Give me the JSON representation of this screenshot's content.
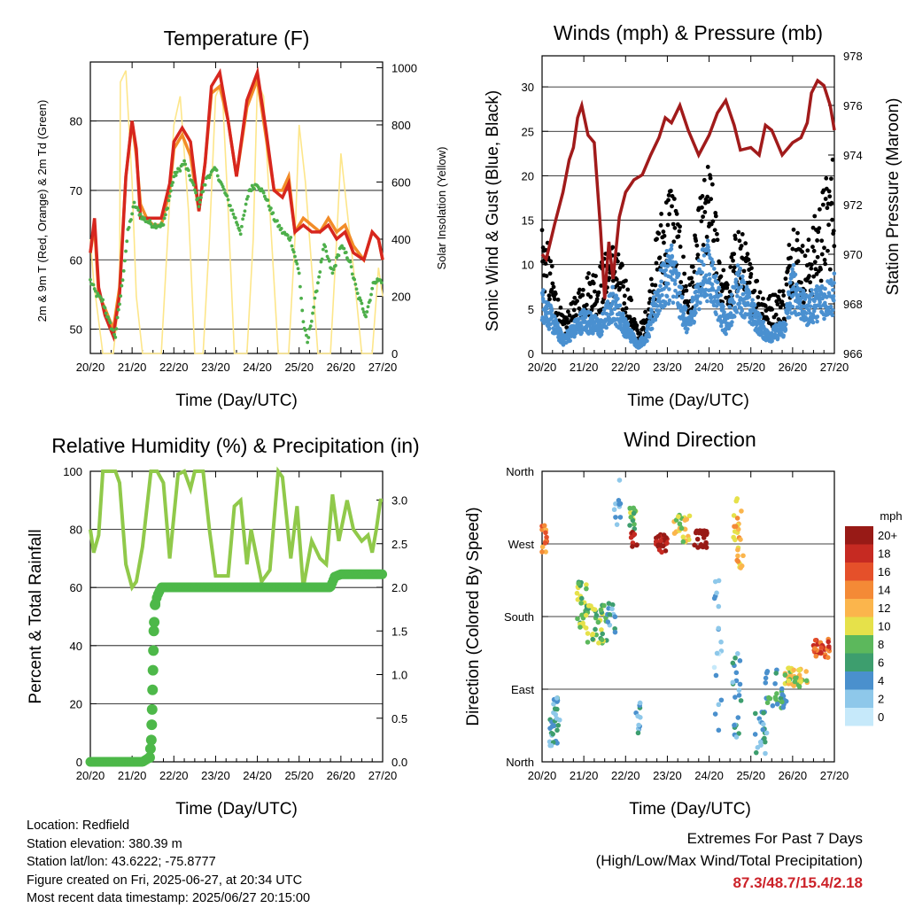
{
  "chart_data": [
    {
      "type": "line",
      "title": "Temperature (F)",
      "xlabel": "Time (Day/UTC)",
      "ylabel": "2m & 9m T (Red, Orange) & 2m Td (Green)",
      "y2label": "Solar Insolation (Yellow)",
      "xticks": [
        "20/20",
        "21/20",
        "22/20",
        "23/20",
        "24/20",
        "25/20",
        "26/20",
        "27/20"
      ],
      "yticks": [
        50,
        60,
        70,
        80
      ],
      "y2ticks": [
        0,
        200,
        400,
        600,
        800,
        1000
      ],
      "xlim": [
        0,
        7
      ],
      "ylim": [
        46.5,
        88.5
      ],
      "y2lim": [
        0,
        1020
      ],
      "grid": true,
      "colors": {
        "t2m": "#d7261e",
        "t9m": "#f28c28",
        "td": "#4daf4a",
        "solar": "#fde68a"
      },
      "series": [
        {
          "key": "t9m",
          "x": [
            0,
            0.1,
            0.2,
            0.35,
            0.55,
            0.7,
            0.85,
            1.0,
            1.1,
            1.2,
            1.35,
            1.5,
            1.7,
            1.9,
            2.0,
            2.2,
            2.4,
            2.6,
            2.75,
            2.9,
            3.1,
            3.3,
            3.5,
            3.75,
            4.0,
            4.2,
            4.4,
            4.6,
            4.75,
            4.9,
            5.1,
            5.3,
            5.5,
            5.7,
            5.9,
            6.1,
            6.3,
            6.55,
            6.75,
            6.9,
            7.0
          ],
          "values": [
            61,
            65,
            55,
            53,
            50,
            56,
            72,
            80,
            75,
            68,
            66,
            65,
            65,
            70,
            76,
            78,
            75,
            67,
            74,
            84,
            85,
            80,
            72,
            82,
            86,
            78,
            70,
            70,
            72,
            64,
            66,
            65,
            64,
            66,
            64,
            65,
            62,
            60,
            64,
            63,
            60
          ]
        },
        {
          "key": "t2m",
          "x": [
            0,
            0.1,
            0.2,
            0.35,
            0.55,
            0.7,
            0.85,
            1.0,
            1.1,
            1.2,
            1.35,
            1.5,
            1.7,
            1.9,
            2.0,
            2.2,
            2.4,
            2.6,
            2.75,
            2.9,
            3.1,
            3.3,
            3.5,
            3.75,
            4.0,
            4.2,
            4.4,
            4.6,
            4.75,
            4.9,
            5.1,
            5.3,
            5.5,
            5.7,
            5.9,
            6.1,
            6.3,
            6.55,
            6.75,
            6.9,
            7.0
          ],
          "values": [
            61,
            66,
            56,
            52,
            49,
            55,
            72,
            80,
            76,
            66,
            66,
            66,
            66,
            71,
            77,
            79,
            77,
            67,
            74,
            85,
            87,
            80,
            72,
            83,
            87,
            79,
            70,
            69,
            71,
            64,
            65,
            64,
            64,
            65,
            63,
            64,
            61,
            60,
            64,
            63,
            60
          ]
        },
        {
          "key": "td",
          "x": [
            0,
            0.15,
            0.3,
            0.45,
            0.6,
            0.75,
            0.9,
            1.05,
            1.25,
            1.5,
            1.75,
            2.0,
            2.25,
            2.45,
            2.6,
            2.8,
            3.0,
            3.2,
            3.4,
            3.6,
            3.8,
            4.0,
            4.2,
            4.4,
            4.6,
            4.8,
            5.0,
            5.1,
            5.2,
            5.4,
            5.6,
            5.8,
            6.0,
            6.2,
            6.4,
            6.6,
            6.8,
            7.0
          ],
          "values": [
            57,
            55,
            54,
            51,
            49,
            56,
            64,
            68,
            66,
            65,
            65,
            72,
            74,
            71,
            68,
            72,
            73,
            70,
            67,
            64,
            70,
            71,
            69,
            66,
            64,
            63,
            58,
            51,
            48,
            55,
            62,
            58,
            62,
            60,
            55,
            52,
            57,
            57
          ]
        },
        {
          "key": "solar",
          "x": [
            0,
            0.08,
            0.3,
            0.42,
            0.55,
            0.7,
            0.72,
            0.85,
            1.0,
            1.1,
            1.25,
            1.4,
            1.7,
            1.85,
            2.0,
            2.15,
            2.35,
            2.5,
            2.7,
            2.85,
            3.0,
            3.15,
            3.3,
            3.45,
            3.75,
            3.9,
            4.0,
            4.15,
            4.3,
            4.5,
            4.75,
            4.9,
            5.0,
            5.15,
            5.3,
            5.45,
            5.75,
            5.9,
            6.0,
            6.15,
            6.3,
            6.5,
            6.75,
            6.9,
            7.0
          ],
          "values": [
            400,
            250,
            0,
            0,
            0,
            200,
            950,
            990,
            600,
            200,
            0,
            0,
            0,
            400,
            800,
            900,
            500,
            0,
            0,
            400,
            900,
            950,
            500,
            0,
            0,
            400,
            950,
            900,
            500,
            0,
            0,
            400,
            800,
            600,
            300,
            0,
            0,
            400,
            700,
            500,
            300,
            0,
            0,
            300,
            200
          ]
        }
      ]
    },
    {
      "type": "scatter",
      "title": "Winds (mph) & Pressure (mb)",
      "xlabel": "Time (Day/UTC)",
      "ylabel": "Sonic Wind & Gust (Blue, Black)",
      "y2label": "Station Pressure (Maroon)",
      "xticks": [
        "20/20",
        "21/20",
        "22/20",
        "23/20",
        "24/20",
        "25/20",
        "26/20",
        "27/20"
      ],
      "yticks": [
        0,
        5,
        10,
        15,
        20,
        25,
        30
      ],
      "y2ticks": [
        966,
        968,
        970,
        972,
        974,
        976,
        978
      ],
      "xlim": [
        0,
        7
      ],
      "ylim": [
        0,
        33.5
      ],
      "y2lim": [
        966,
        978
      ],
      "grid": true,
      "colors": {
        "wind": "#4a90d0",
        "gust": "#000000",
        "pressure": "#a11b1b"
      },
      "pressure": {
        "x": [
          0,
          0.1,
          0.3,
          0.5,
          0.65,
          0.75,
          0.85,
          0.95,
          1.1,
          1.25,
          1.4,
          1.5,
          1.6,
          1.7,
          1.85,
          2.0,
          2.2,
          2.4,
          2.6,
          2.8,
          2.95,
          3.1,
          3.3,
          3.5,
          3.75,
          4.0,
          4.2,
          4.4,
          4.6,
          4.75,
          5.0,
          5.2,
          5.35,
          5.5,
          5.75,
          6.0,
          6.2,
          6.35,
          6.45,
          6.6,
          6.75,
          6.9,
          7.0
        ],
        "values": [
          970,
          969.8,
          971.2,
          972.5,
          973.8,
          974.3,
          975.5,
          976,
          974.8,
          974.5,
          971,
          968.2,
          970.5,
          969,
          971.5,
          972.5,
          973,
          973.2,
          974,
          974.7,
          975.5,
          975.3,
          976,
          975,
          974,
          974.8,
          975.7,
          976.2,
          975.2,
          974.2,
          974.3,
          974,
          975.2,
          975,
          974,
          974.5,
          974.7,
          975.3,
          976.5,
          977,
          976.8,
          976,
          975
        ]
      },
      "wind_profile": {
        "x": [
          0,
          0.5,
          0.8,
          1.0,
          1.4,
          1.7,
          2.0,
          2.3,
          2.5,
          2.8,
          3.1,
          3.5,
          3.8,
          4.0,
          4.4,
          4.7,
          5.0,
          5.4,
          5.8,
          6.0,
          6.3,
          6.6,
          7.0
        ],
        "values": [
          6,
          1.5,
          3,
          4,
          3,
          6,
          3,
          1,
          2,
          7,
          10,
          3,
          9,
          10,
          3,
          8,
          5,
          2,
          3,
          8,
          5,
          6,
          7
        ]
      },
      "gust_profile": {
        "x": [
          0,
          0.5,
          0.8,
          1.0,
          1.4,
          1.7,
          2.0,
          2.3,
          2.5,
          2.8,
          3.1,
          3.5,
          3.8,
          4.0,
          4.4,
          4.7,
          5.0,
          5.4,
          5.8,
          6.0,
          6.3,
          6.6,
          7.0
        ],
        "values": [
          12,
          3,
          5,
          7,
          8,
          10,
          7,
          2,
          4,
          12,
          16,
          6,
          14,
          17,
          6,
          12,
          8,
          5,
          6,
          13,
          9,
          13,
          18
        ]
      }
    },
    {
      "type": "line",
      "title": "Relative Humidity (%) & Precipitation (in)",
      "xlabel": "Time (Day/UTC)",
      "ylabel": "Percent & Total Rainfall",
      "xticks": [
        "20/20",
        "21/20",
        "22/20",
        "23/20",
        "24/20",
        "25/20",
        "26/20",
        "27/20"
      ],
      "yticks": [
        0,
        20,
        40,
        60,
        80,
        100
      ],
      "y2ticks": [
        "0.0",
        "0.5",
        "1.0",
        "1.5",
        "2.0",
        "2.5",
        "3.0"
      ],
      "xlim": [
        0,
        7
      ],
      "ylim": [
        0,
        100
      ],
      "y2lim": [
        0,
        3.33
      ],
      "grid": true,
      "colors": {
        "rh": "#90c94a",
        "precip": "#4db849"
      },
      "rh": {
        "x": [
          0,
          0.08,
          0.2,
          0.3,
          0.6,
          0.7,
          0.85,
          1.0,
          1.1,
          1.25,
          1.45,
          1.6,
          1.75,
          1.9,
          2.1,
          2.25,
          2.4,
          2.5,
          2.7,
          2.85,
          3.0,
          3.3,
          3.45,
          3.6,
          3.75,
          3.85,
          4.1,
          4.3,
          4.5,
          4.6,
          4.8,
          4.95,
          5.1,
          5.3,
          5.5,
          5.65,
          5.8,
          5.95,
          6.15,
          6.3,
          6.5,
          6.65,
          6.75,
          6.85,
          6.95,
          7.0
        ],
        "values": [
          80,
          72,
          78,
          100,
          100,
          96,
          68,
          60,
          62,
          74,
          100,
          100,
          96,
          70,
          99,
          100,
          94,
          100,
          100,
          80,
          64,
          64,
          88,
          90,
          68,
          80,
          62,
          66,
          100,
          98,
          70,
          88,
          60,
          76,
          70,
          68,
          92,
          76,
          90,
          80,
          76,
          78,
          72,
          80,
          90,
          90
        ]
      },
      "precip": {
        "x": [
          0,
          0.5,
          0.9,
          1.25,
          1.42,
          1.46,
          1.48,
          1.5,
          1.52,
          1.55,
          1.6,
          1.7,
          2.0,
          3.0,
          4.0,
          5.0,
          5.75,
          5.85,
          6.0,
          6.5,
          7.0
        ],
        "values": [
          0,
          0,
          0,
          0,
          0.05,
          0.25,
          0.6,
          1.05,
          1.5,
          1.8,
          1.9,
          2.0,
          2.0,
          2.0,
          2.0,
          2.0,
          2.0,
          2.12,
          2.15,
          2.15,
          2.15
        ]
      }
    },
    {
      "type": "scatter",
      "title": "Wind Direction",
      "xlabel": "Time (Day/UTC)",
      "ylabel": "Direction (Colored By Speed)",
      "xticks": [
        "20/20",
        "21/20",
        "22/20",
        "23/20",
        "24/20",
        "25/20",
        "26/20",
        "27/20"
      ],
      "yticks": [
        "North",
        "East",
        "South",
        "West",
        "North"
      ],
      "ytick_values": [
        0,
        90,
        180,
        270,
        360
      ],
      "xlim": [
        0,
        7
      ],
      "ylim": [
        0,
        360
      ],
      "grid": true,
      "legend": {
        "title": "mph",
        "labels": [
          "0",
          "2",
          "4",
          "6",
          "8",
          "10",
          "12",
          "14",
          "16",
          "18",
          "20+"
        ],
        "colors": [
          "#c6e9fa",
          "#8ec8ea",
          "#4a90cd",
          "#3d9e6e",
          "#5cb85c",
          "#e6e14a",
          "#fbb54c",
          "#f48a36",
          "#e5502a",
          "#c62a22",
          "#981a16"
        ]
      },
      "clusters": [
        {
          "x": 0.05,
          "y": 275,
          "dx": 0.08,
          "dy": 18,
          "s": 7,
          "n": 14
        },
        {
          "x": 0.3,
          "y": 50,
          "dx": 0.12,
          "dy": 30,
          "s": 2,
          "n": 30
        },
        {
          "x": 0.95,
          "y": 195,
          "dx": 0.12,
          "dy": 30,
          "s": 4,
          "n": 26
        },
        {
          "x": 1.3,
          "y": 170,
          "dx": 0.25,
          "dy": 25,
          "s": 4,
          "n": 40
        },
        {
          "x": 1.65,
          "y": 180,
          "dx": 0.1,
          "dy": 25,
          "s": 2,
          "n": 12
        },
        {
          "x": 1.8,
          "y": 320,
          "dx": 0.08,
          "dy": 35,
          "s": 1,
          "n": 10
        },
        {
          "x": 2.15,
          "y": 300,
          "dx": 0.1,
          "dy": 15,
          "s": 4,
          "n": 16
        },
        {
          "x": 2.2,
          "y": 275,
          "dx": 0.08,
          "dy": 10,
          "s": 10,
          "n": 10
        },
        {
          "x": 2.3,
          "y": 45,
          "dx": 0.06,
          "dy": 35,
          "s": 2,
          "n": 12
        },
        {
          "x": 2.85,
          "y": 270,
          "dx": 0.15,
          "dy": 12,
          "s": 10,
          "n": 24
        },
        {
          "x": 3.35,
          "y": 290,
          "dx": 0.2,
          "dy": 18,
          "s": 5,
          "n": 24
        },
        {
          "x": 3.8,
          "y": 275,
          "dx": 0.15,
          "dy": 12,
          "s": 11,
          "n": 24
        },
        {
          "x": 4.2,
          "y": 130,
          "dx": 0.1,
          "dy": 100,
          "s": 1,
          "n": 18
        },
        {
          "x": 4.7,
          "y": 285,
          "dx": 0.12,
          "dy": 45,
          "s": 6,
          "n": 26
        },
        {
          "x": 4.65,
          "y": 80,
          "dx": 0.12,
          "dy": 55,
          "s": 2,
          "n": 22
        },
        {
          "x": 5.25,
          "y": 35,
          "dx": 0.15,
          "dy": 30,
          "s": 2,
          "n": 22
        },
        {
          "x": 5.6,
          "y": 90,
          "dx": 0.25,
          "dy": 25,
          "s": 3,
          "n": 30
        },
        {
          "x": 6.1,
          "y": 105,
          "dx": 0.3,
          "dy": 12,
          "s": 5,
          "n": 40
        },
        {
          "x": 6.7,
          "y": 140,
          "dx": 0.2,
          "dy": 12,
          "s": 8,
          "n": 30
        }
      ]
    }
  ],
  "info": {
    "location": "Location: Redfield",
    "elevation": "Station elevation: 380.39 m",
    "latlon": "Station lat/lon: 43.6222; -75.8777",
    "created": "Figure created on Fri, 2025-06-27, at 20:34 UTC",
    "recent": "Most recent data timestamp: 2025/06/27 20:15:00"
  },
  "extremes": {
    "title": "Extremes For Past 7 Days",
    "subtitle": "(High/Low/Max Wind/Total Precipitation)",
    "values": "87.3/48.7/15.4/2.18"
  }
}
